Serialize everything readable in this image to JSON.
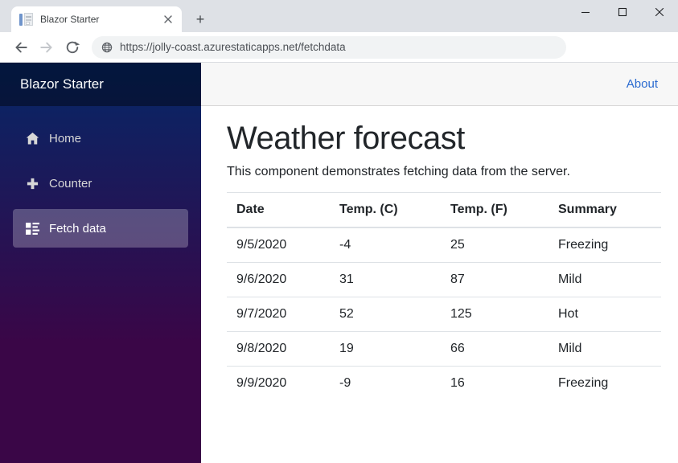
{
  "browser": {
    "tab_title": "Blazor Starter",
    "new_tab_label": "+",
    "url": "https://jolly-coast.azurestaticapps.net/fetchdata"
  },
  "sidebar": {
    "brand": "Blazor Starter",
    "items": [
      {
        "label": "Home",
        "icon": "home-icon",
        "active": false
      },
      {
        "label": "Counter",
        "icon": "plus-icon",
        "active": false
      },
      {
        "label": "Fetch data",
        "icon": "list-icon",
        "active": true
      }
    ]
  },
  "topbar": {
    "about_label": "About"
  },
  "main": {
    "title": "Weather forecast",
    "description": "This component demonstrates fetching data from the server.",
    "table": {
      "headers": [
        "Date",
        "Temp. (C)",
        "Temp. (F)",
        "Summary"
      ],
      "rows": [
        [
          "9/5/2020",
          "-4",
          "25",
          "Freezing"
        ],
        [
          "9/6/2020",
          "31",
          "87",
          "Mild"
        ],
        [
          "9/7/2020",
          "52",
          "125",
          "Hot"
        ],
        [
          "9/8/2020",
          "19",
          "66",
          "Mild"
        ],
        [
          "9/9/2020",
          "-9",
          "16",
          "Freezing"
        ]
      ]
    }
  },
  "colors": {
    "sidebar_top": "#052767",
    "sidebar_bottom": "#3a0647",
    "topbar_bg": "#f7f7f7",
    "link": "#2b6bd0",
    "text": "#212529",
    "table_border": "#dee2e6"
  }
}
